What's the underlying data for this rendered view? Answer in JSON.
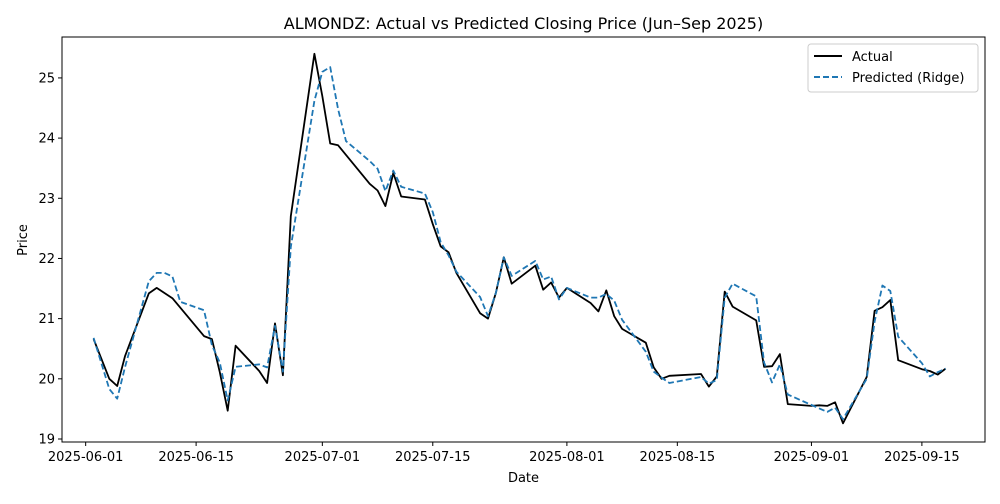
{
  "chart_data": {
    "type": "line",
    "title": "ALMONDZ: Actual vs Predicted Closing Price (Jun–Sep 2025)",
    "xlabel": "Date",
    "ylabel": "Price",
    "xlim": [
      "2025-05-29",
      "2025-09-23"
    ],
    "ylim": [
      18.95,
      25.68
    ],
    "x_ticks": [
      "2025-06-01",
      "2025-06-15",
      "2025-07-01",
      "2025-07-15",
      "2025-08-01",
      "2025-08-15",
      "2025-09-01",
      "2025-09-15"
    ],
    "y_ticks": [
      19,
      20,
      21,
      22,
      23,
      24,
      25
    ],
    "grid": false,
    "legend": "top-right",
    "series": [
      {
        "name": "Actual",
        "color": "#000000",
        "style": "solid",
        "points": [
          [
            "2025-06-02",
            20.66
          ],
          [
            "2025-06-04",
            20.0
          ],
          [
            "2025-06-05",
            19.88
          ],
          [
            "2025-06-06",
            20.38
          ],
          [
            "2025-06-09",
            21.42
          ],
          [
            "2025-06-10",
            21.51
          ],
          [
            "2025-06-12",
            21.34
          ],
          [
            "2025-06-16",
            20.71
          ],
          [
            "2025-06-17",
            20.66
          ],
          [
            "2025-06-18",
            20.11
          ],
          [
            "2025-06-19",
            19.47
          ],
          [
            "2025-06-20",
            20.55
          ],
          [
            "2025-06-23",
            20.13
          ],
          [
            "2025-06-24",
            19.93
          ],
          [
            "2025-06-25",
            20.92
          ],
          [
            "2025-06-26",
            20.06
          ],
          [
            "2025-06-27",
            22.7
          ],
          [
            "2025-06-30",
            25.4
          ],
          [
            "2025-07-01",
            24.7
          ],
          [
            "2025-07-02",
            23.91
          ],
          [
            "2025-07-03",
            23.88
          ],
          [
            "2025-07-04",
            23.72
          ],
          [
            "2025-07-07",
            23.24
          ],
          [
            "2025-07-08",
            23.13
          ],
          [
            "2025-07-09",
            22.87
          ],
          [
            "2025-07-10",
            23.42
          ],
          [
            "2025-07-11",
            23.03
          ],
          [
            "2025-07-14",
            22.98
          ],
          [
            "2025-07-15",
            22.57
          ],
          [
            "2025-07-16",
            22.2
          ],
          [
            "2025-07-17",
            22.1
          ],
          [
            "2025-07-18",
            21.76
          ],
          [
            "2025-07-21",
            21.09
          ],
          [
            "2025-07-22",
            21.0
          ],
          [
            "2025-07-23",
            21.43
          ],
          [
            "2025-07-24",
            22.02
          ],
          [
            "2025-07-25",
            21.58
          ],
          [
            "2025-07-28",
            21.88
          ],
          [
            "2025-07-29",
            21.48
          ],
          [
            "2025-07-30",
            21.6
          ],
          [
            "2025-07-31",
            21.35
          ],
          [
            "2025-08-01",
            21.51
          ],
          [
            "2025-08-04",
            21.26
          ],
          [
            "2025-08-05",
            21.12
          ],
          [
            "2025-08-06",
            21.47
          ],
          [
            "2025-08-07",
            21.04
          ],
          [
            "2025-08-08",
            20.83
          ],
          [
            "2025-08-11",
            20.6
          ],
          [
            "2025-08-12",
            20.19
          ],
          [
            "2025-08-13",
            20.0
          ],
          [
            "2025-08-14",
            20.05
          ],
          [
            "2025-08-18",
            20.08
          ],
          [
            "2025-08-19",
            19.87
          ],
          [
            "2025-08-20",
            20.04
          ],
          [
            "2025-08-21",
            21.45
          ],
          [
            "2025-08-22",
            21.2
          ],
          [
            "2025-08-25",
            20.97
          ],
          [
            "2025-08-26",
            20.2
          ],
          [
            "2025-08-27",
            20.21
          ],
          [
            "2025-08-28",
            20.41
          ],
          [
            "2025-08-29",
            19.58
          ],
          [
            "2025-09-01",
            19.55
          ],
          [
            "2025-09-02",
            19.56
          ],
          [
            "2025-09-03",
            19.55
          ],
          [
            "2025-09-04",
            19.61
          ],
          [
            "2025-09-05",
            19.26
          ],
          [
            "2025-09-08",
            20.03
          ],
          [
            "2025-09-09",
            21.13
          ],
          [
            "2025-09-10",
            21.19
          ],
          [
            "2025-09-11",
            21.31
          ],
          [
            "2025-09-12",
            20.31
          ],
          [
            "2025-09-15",
            20.16
          ],
          [
            "2025-09-16",
            20.13
          ],
          [
            "2025-09-17",
            20.07
          ],
          [
            "2025-09-18",
            20.17
          ]
        ]
      },
      {
        "name": "Predicted (Ridge)",
        "color": "#1f77b4",
        "style": "dashed",
        "points": [
          [
            "2025-06-02",
            20.68
          ],
          [
            "2025-06-04",
            19.83
          ],
          [
            "2025-06-05",
            19.67
          ],
          [
            "2025-06-06",
            20.2
          ],
          [
            "2025-06-09",
            21.62
          ],
          [
            "2025-06-10",
            21.76
          ],
          [
            "2025-06-11",
            21.76
          ],
          [
            "2025-06-12",
            21.7
          ],
          [
            "2025-06-13",
            21.28
          ],
          [
            "2025-06-16",
            21.14
          ],
          [
            "2025-06-17",
            20.56
          ],
          [
            "2025-06-18",
            20.27
          ],
          [
            "2025-06-19",
            19.64
          ],
          [
            "2025-06-20",
            20.2
          ],
          [
            "2025-06-23",
            20.24
          ],
          [
            "2025-06-24",
            20.19
          ],
          [
            "2025-06-25",
            20.88
          ],
          [
            "2025-06-26",
            20.12
          ],
          [
            "2025-06-27",
            22.19
          ],
          [
            "2025-06-30",
            24.62
          ],
          [
            "2025-07-01",
            25.1
          ],
          [
            "2025-07-02",
            25.18
          ],
          [
            "2025-07-03",
            24.48
          ],
          [
            "2025-07-04",
            23.95
          ],
          [
            "2025-07-07",
            23.62
          ],
          [
            "2025-07-08",
            23.49
          ],
          [
            "2025-07-09",
            23.12
          ],
          [
            "2025-07-10",
            23.46
          ],
          [
            "2025-07-11",
            23.19
          ],
          [
            "2025-07-14",
            23.08
          ],
          [
            "2025-07-15",
            22.77
          ],
          [
            "2025-07-16",
            22.27
          ],
          [
            "2025-07-17",
            22.05
          ],
          [
            "2025-07-18",
            21.78
          ],
          [
            "2025-07-21",
            21.36
          ],
          [
            "2025-07-22",
            21.04
          ],
          [
            "2025-07-23",
            21.43
          ],
          [
            "2025-07-24",
            22.02
          ],
          [
            "2025-07-25",
            21.71
          ],
          [
            "2025-07-28",
            21.96
          ],
          [
            "2025-07-29",
            21.65
          ],
          [
            "2025-07-30",
            21.7
          ],
          [
            "2025-07-31",
            21.32
          ],
          [
            "2025-08-01",
            21.51
          ],
          [
            "2025-08-04",
            21.35
          ],
          [
            "2025-08-05",
            21.35
          ],
          [
            "2025-08-06",
            21.41
          ],
          [
            "2025-08-07",
            21.3
          ],
          [
            "2025-08-08",
            20.98
          ],
          [
            "2025-08-11",
            20.45
          ],
          [
            "2025-08-12",
            20.12
          ],
          [
            "2025-08-13",
            20.02
          ],
          [
            "2025-08-14",
            19.93
          ],
          [
            "2025-08-18",
            20.03
          ],
          [
            "2025-08-19",
            19.92
          ],
          [
            "2025-08-20",
            19.98
          ],
          [
            "2025-08-21",
            21.35
          ],
          [
            "2025-08-22",
            21.58
          ],
          [
            "2025-08-25",
            21.37
          ],
          [
            "2025-08-26",
            20.27
          ],
          [
            "2025-08-27",
            19.94
          ],
          [
            "2025-08-28",
            20.24
          ],
          [
            "2025-08-29",
            19.74
          ],
          [
            "2025-09-03",
            19.45
          ],
          [
            "2025-09-04",
            19.52
          ],
          [
            "2025-09-05",
            19.33
          ],
          [
            "2025-09-08",
            20.0
          ],
          [
            "2025-09-09",
            20.95
          ],
          [
            "2025-09-10",
            21.55
          ],
          [
            "2025-09-11",
            21.46
          ],
          [
            "2025-09-12",
            20.7
          ],
          [
            "2025-09-15",
            20.26
          ],
          [
            "2025-09-16",
            20.04
          ],
          [
            "2025-09-17",
            20.11
          ],
          [
            "2025-09-18",
            20.17
          ]
        ]
      }
    ]
  }
}
